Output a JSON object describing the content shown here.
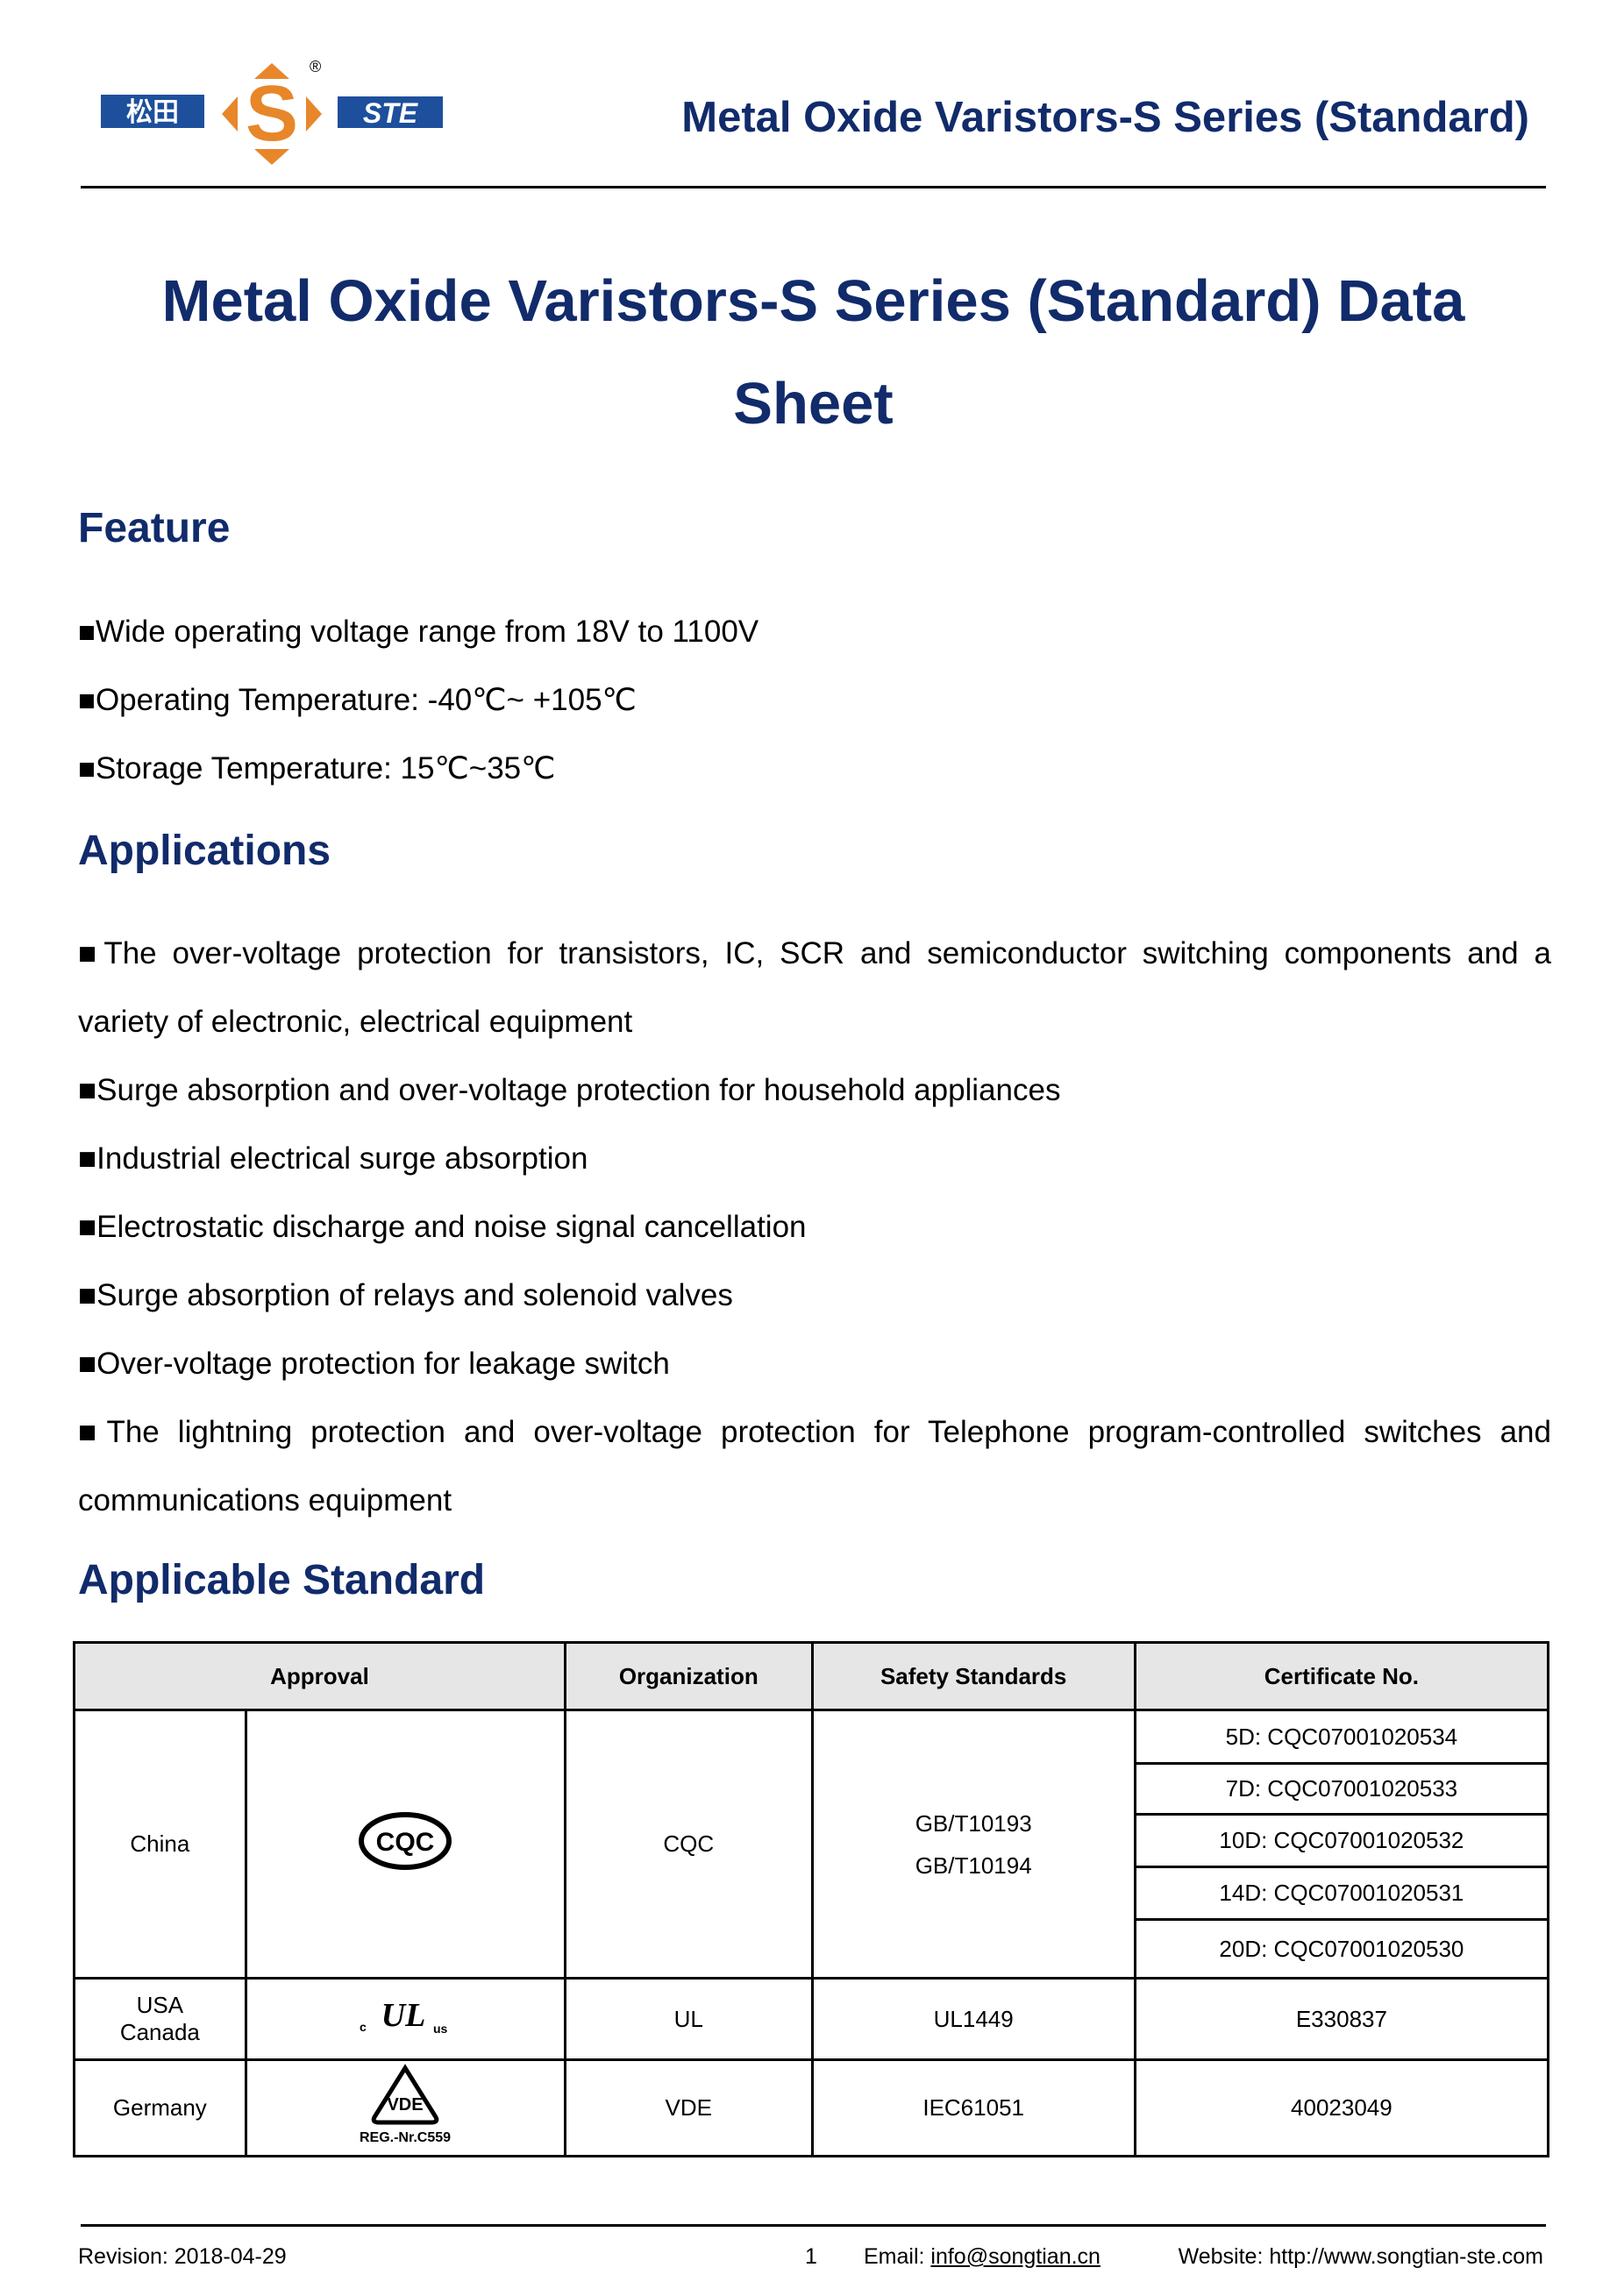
{
  "header": {
    "title": "Metal Oxide Varistors-S Series (Standard)",
    "logo_text": "松田 S STE ®"
  },
  "document": {
    "title_line1": "Metal Oxide Varistors-S Series (Standard) Data",
    "title_line2": "Sheet"
  },
  "feature": {
    "heading": "Feature",
    "items": [
      "Wide operating voltage range from 18V to 1100V",
      "Operating Temperature: -40℃~ +105℃",
      "Storage Temperature: 15℃~35℃"
    ]
  },
  "applications": {
    "heading": "Applications",
    "items": [
      "The over-voltage protection for transistors, IC, SCR and semiconductor switching components and a variety of electronic, electrical equipment",
      "Surge absorption and over-voltage protection for household appliances",
      "Industrial electrical surge absorption",
      "Electrostatic discharge and noise signal cancellation",
      "Surge absorption of relays and solenoid valves",
      "Over-voltage protection for leakage switch",
      "The lightning protection and over-voltage protection for Telephone program-controlled switches and communications equipment"
    ]
  },
  "standard": {
    "heading": "Applicable Standard",
    "columns": [
      "Approval",
      "Organization",
      "Safety Standards",
      "Certificate No."
    ],
    "rows": [
      {
        "region": "China",
        "mark": "CQC",
        "organization": "CQC",
        "standards": [
          "GB/T10193",
          "GB/T10194"
        ],
        "certificates": [
          "5D: CQC07001020534",
          "7D: CQC07001020533",
          "10D: CQC07001020532",
          "14D: CQC07001020531",
          "20D: CQC07001020530"
        ]
      },
      {
        "region_line1": "USA",
        "region_line2": "Canada",
        "mark": "c UL us",
        "organization": "UL",
        "standards": [
          "UL1449"
        ],
        "certificates": [
          "E330837"
        ]
      },
      {
        "region": "Germany",
        "mark": "VDE",
        "mark_sub": "REG.-Nr.C559",
        "organization": "VDE",
        "standards": [
          "IEC61051"
        ],
        "certificates": [
          "40023049"
        ]
      }
    ]
  },
  "footer": {
    "revision": "Revision: 2018-04-29",
    "page": "1",
    "email_label": "Email: ",
    "email": "info@songtian.cn",
    "website": "Website: http://www.songtian-ste.com"
  },
  "colors": {
    "heading": "#112b6b",
    "logo_blue": "#1d4f9c",
    "logo_orange": "#e8862a",
    "table_header": "#e6e6e6"
  }
}
